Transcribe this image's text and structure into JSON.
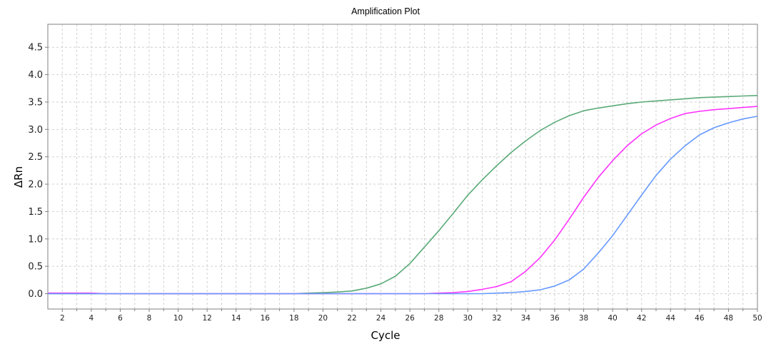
{
  "chart_data": {
    "type": "line",
    "title": "Amplification Plot",
    "xlabel": "Cycle",
    "ylabel": "ΔRn",
    "xlim": [
      1,
      50
    ],
    "ylim": [
      -0.28,
      4.92
    ],
    "xticks": [
      2,
      4,
      6,
      8,
      10,
      12,
      14,
      16,
      18,
      20,
      22,
      24,
      26,
      28,
      30,
      32,
      34,
      36,
      38,
      40,
      42,
      44,
      46,
      48,
      50
    ],
    "yticks": [
      0.0,
      0.5,
      1.0,
      1.5,
      2.0,
      2.5,
      3.0,
      3.5,
      4.0,
      4.5
    ],
    "ytick_labels": [
      "0.0",
      "0.5",
      "1.0",
      "1.5",
      "2.0",
      "2.5",
      "3.0",
      "3.5",
      "4.0",
      "4.5"
    ],
    "grid": true,
    "x": [
      1,
      2,
      3,
      4,
      5,
      6,
      7,
      8,
      9,
      10,
      11,
      12,
      13,
      14,
      15,
      16,
      17,
      18,
      19,
      20,
      21,
      22,
      23,
      24,
      25,
      26,
      27,
      28,
      29,
      30,
      31,
      32,
      33,
      34,
      35,
      36,
      37,
      38,
      39,
      40,
      41,
      42,
      43,
      44,
      45,
      46,
      47,
      48,
      49,
      50
    ],
    "series": [
      {
        "color": "#5aaa78",
        "values": [
          0.0,
          0.0,
          0.0,
          0.0,
          0.0,
          0.0,
          0.0,
          0.0,
          0.0,
          0.0,
          0.0,
          0.0,
          0.0,
          0.0,
          0.0,
          0.0,
          0.0,
          0.0,
          0.01,
          0.02,
          0.03,
          0.05,
          0.1,
          0.18,
          0.32,
          0.55,
          0.85,
          1.15,
          1.47,
          1.8,
          2.08,
          2.34,
          2.58,
          2.79,
          2.98,
          3.13,
          3.25,
          3.34,
          3.39,
          3.43,
          3.47,
          3.5,
          3.52,
          3.54,
          3.56,
          3.58,
          3.59,
          3.6,
          3.61,
          3.62
        ]
      },
      {
        "color": "#ff33ff",
        "values": [
          0.01,
          0.01,
          0.01,
          0.01,
          0.0,
          0.0,
          0.0,
          0.0,
          0.0,
          0.0,
          0.0,
          0.0,
          0.0,
          0.0,
          0.0,
          0.0,
          0.0,
          0.0,
          0.0,
          0.0,
          0.0,
          0.0,
          0.0,
          0.0,
          0.0,
          0.0,
          0.0,
          0.01,
          0.02,
          0.04,
          0.08,
          0.13,
          0.22,
          0.41,
          0.66,
          0.98,
          1.36,
          1.76,
          2.12,
          2.43,
          2.7,
          2.92,
          3.08,
          3.2,
          3.29,
          3.33,
          3.36,
          3.38,
          3.4,
          3.42
        ]
      },
      {
        "color": "#6699ff",
        "values": [
          0.0,
          0.0,
          0.0,
          0.0,
          0.0,
          0.0,
          0.0,
          0.0,
          0.0,
          0.0,
          0.0,
          0.0,
          0.0,
          0.0,
          0.0,
          0.0,
          0.0,
          0.0,
          0.0,
          0.0,
          0.0,
          0.0,
          0.0,
          0.0,
          0.0,
          0.0,
          0.0,
          0.0,
          0.0,
          0.0,
          0.0,
          0.01,
          0.02,
          0.04,
          0.07,
          0.14,
          0.25,
          0.45,
          0.74,
          1.06,
          1.43,
          1.8,
          2.16,
          2.46,
          2.7,
          2.9,
          3.03,
          3.12,
          3.19,
          3.24
        ]
      }
    ]
  },
  "colors": {
    "grid": "#d0d0d0",
    "axis": "#808080"
  }
}
